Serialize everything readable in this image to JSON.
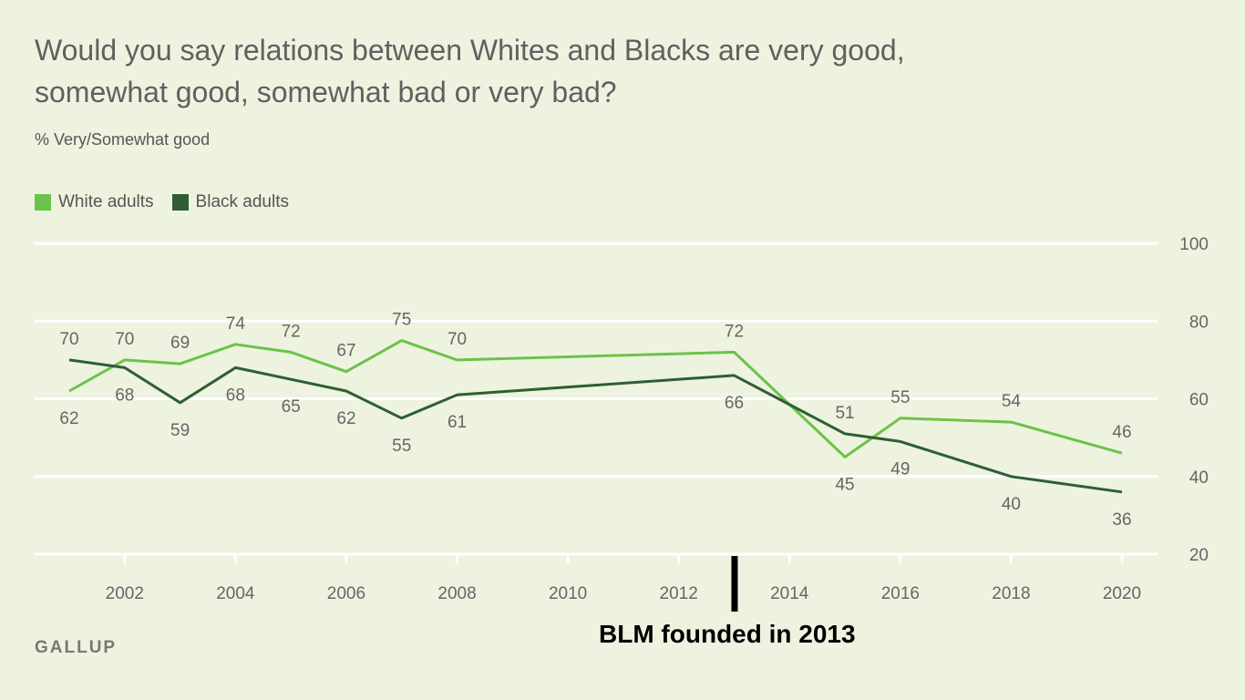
{
  "header": {
    "title": "Would you say relations between Whites and Blacks are very good, somewhat good, somewhat bad or very bad?",
    "subtitle": "% Very/Somewhat good"
  },
  "legend": {
    "items": [
      {
        "label": "White adults",
        "color": "#6cc24a"
      },
      {
        "label": "Black adults",
        "color": "#2e5e36"
      }
    ]
  },
  "footer": {
    "source": "GALLUP",
    "annotation": "BLM founded in 2013"
  },
  "chart_data": {
    "type": "line",
    "title": "Would you say relations between Whites and Blacks are very good, somewhat good, somewhat bad or very bad?",
    "ylabel": "% Very/Somewhat good",
    "xlabel": "",
    "xlim": [
      2001,
      2020
    ],
    "ylim": [
      20,
      100
    ],
    "yticks": [
      20,
      40,
      60,
      80,
      100
    ],
    "xticks": [
      2002,
      2004,
      2006,
      2008,
      2010,
      2012,
      2014,
      2016,
      2018,
      2020
    ],
    "gridlines": [
      20,
      40,
      60,
      80,
      100
    ],
    "series": [
      {
        "name": "White adults",
        "color": "#6cc24a",
        "x": [
          2001,
          2002,
          2003,
          2004,
          2005,
          2006,
          2007,
          2008,
          2013,
          2015,
          2016,
          2018,
          2020
        ],
        "values": [
          62,
          70,
          69,
          74,
          72,
          67,
          75,
          70,
          72,
          45,
          55,
          54,
          46
        ]
      },
      {
        "name": "Black adults",
        "color": "#2e5e36",
        "x": [
          2001,
          2002,
          2003,
          2004,
          2005,
          2006,
          2007,
          2008,
          2013,
          2015,
          2016,
          2018,
          2020
        ],
        "values": [
          70,
          68,
          59,
          68,
          65,
          62,
          55,
          61,
          66,
          51,
          49,
          40,
          36
        ]
      }
    ],
    "data_labels": [
      {
        "series": "Black adults",
        "x": 2001,
        "value": 70,
        "position": "above"
      },
      {
        "series": "White adults",
        "x": 2001,
        "value": 62,
        "position": "below"
      },
      {
        "series": "White adults",
        "x": 2002,
        "value": 70,
        "position": "above"
      },
      {
        "series": "Black adults",
        "x": 2002,
        "value": 68,
        "position": "below"
      },
      {
        "series": "White adults",
        "x": 2003,
        "value": 69,
        "position": "above"
      },
      {
        "series": "Black adults",
        "x": 2003,
        "value": 59,
        "position": "below"
      },
      {
        "series": "White adults",
        "x": 2004,
        "value": 74,
        "position": "above"
      },
      {
        "series": "Black adults",
        "x": 2004,
        "value": 68,
        "position": "below"
      },
      {
        "series": "White adults",
        "x": 2005,
        "value": 72,
        "position": "above"
      },
      {
        "series": "Black adults",
        "x": 2005,
        "value": 65,
        "position": "below"
      },
      {
        "series": "White adults",
        "x": 2006,
        "value": 67,
        "position": "above"
      },
      {
        "series": "Black adults",
        "x": 2006,
        "value": 62,
        "position": "below"
      },
      {
        "series": "White adults",
        "x": 2007,
        "value": 75,
        "position": "above"
      },
      {
        "series": "Black adults",
        "x": 2007,
        "value": 55,
        "position": "below"
      },
      {
        "series": "White adults",
        "x": 2008,
        "value": 70,
        "position": "above"
      },
      {
        "series": "Black adults",
        "x": 2008,
        "value": 61,
        "position": "below"
      },
      {
        "series": "White adults",
        "x": 2013,
        "value": 72,
        "position": "above"
      },
      {
        "series": "Black adults",
        "x": 2013,
        "value": 66,
        "position": "below"
      },
      {
        "series": "Black adults",
        "x": 2015,
        "value": 51,
        "position": "above"
      },
      {
        "series": "White adults",
        "x": 2015,
        "value": 45,
        "position": "below"
      },
      {
        "series": "White adults",
        "x": 2016,
        "value": 55,
        "position": "above"
      },
      {
        "series": "Black adults",
        "x": 2016,
        "value": 49,
        "position": "below"
      },
      {
        "series": "White adults",
        "x": 2018,
        "value": 54,
        "position": "above"
      },
      {
        "series": "Black adults",
        "x": 2018,
        "value": 40,
        "position": "below"
      },
      {
        "series": "White adults",
        "x": 2020,
        "value": 46,
        "position": "above"
      },
      {
        "series": "Black adults",
        "x": 2020,
        "value": 36,
        "position": "below"
      }
    ],
    "annotation": {
      "text": "BLM founded in 2013",
      "x": 2013
    }
  }
}
